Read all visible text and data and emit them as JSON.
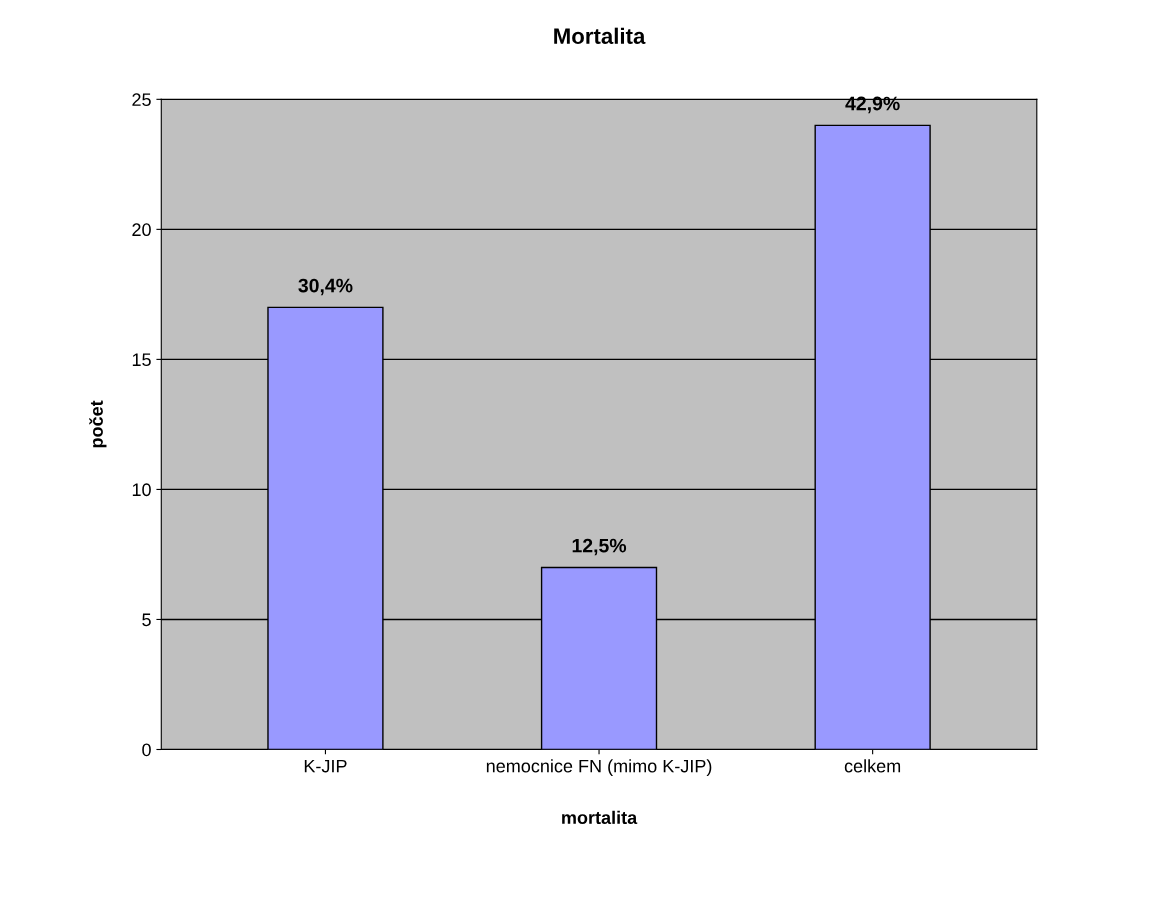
{
  "chart_data": {
    "type": "bar",
    "title": "Mortalita",
    "xlabel": "mortalita",
    "ylabel": "počet",
    "categories": [
      "K-JIP",
      "nemocnice FN (mimo K-JIP)",
      "celkem"
    ],
    "values": [
      17,
      7,
      24
    ],
    "color": "#9999ff",
    "annotations": [
      {
        "text": "30,4%",
        "x": "K-JIP",
        "y": 17
      },
      {
        "text": "12,5%",
        "x": "nemocnice FN (mimo K-JIP)",
        "y": 7
      },
      {
        "text": "42,9%",
        "x": "celkem",
        "y": 24
      }
    ],
    "ylim": [
      0,
      25
    ],
    "yticks": [
      0,
      5,
      10,
      15,
      20,
      25
    ],
    "grid": "y"
  }
}
